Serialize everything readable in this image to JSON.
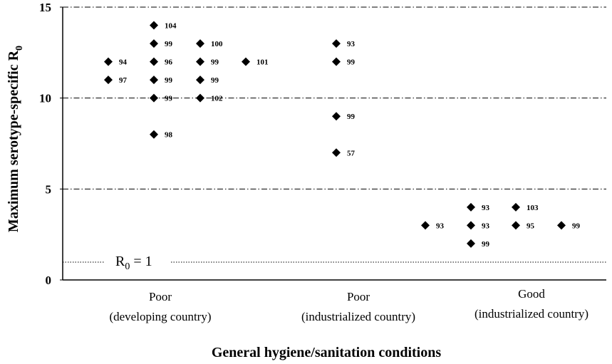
{
  "chart_data": {
    "type": "scatter",
    "xlabel": "General hygiene/sanitation conditions",
    "ylabel": "Maximum serotype-specific R",
    "ylabel_subscript": "0",
    "ylim": [
      0,
      15
    ],
    "yticks": [
      "0",
      "5",
      "10",
      "15"
    ],
    "grid": "horizontal dash-dot at 5, 10, 15",
    "categories": [
      {
        "line1": "Poor",
        "line2": "(developing country)"
      },
      {
        "line1": "Poor",
        "line2": "(industrialized country)"
      },
      {
        "line1": "Good",
        "line2": "(industrialized country)"
      }
    ],
    "reference_line": {
      "value": 1,
      "label_main": "R",
      "label_sub": "0",
      "label_rest": " = 1"
    },
    "points": [
      {
        "group": 0,
        "col": 0,
        "y": 12,
        "label": "94"
      },
      {
        "group": 0,
        "col": 0,
        "y": 11,
        "label": "97"
      },
      {
        "group": 0,
        "col": 1,
        "y": 14,
        "label": "104"
      },
      {
        "group": 0,
        "col": 1,
        "y": 13,
        "label": "99"
      },
      {
        "group": 0,
        "col": 1,
        "y": 12,
        "label": "96"
      },
      {
        "group": 0,
        "col": 1,
        "y": 11,
        "label": "99"
      },
      {
        "group": 0,
        "col": 1,
        "y": 10,
        "label": "99"
      },
      {
        "group": 0,
        "col": 1,
        "y": 8,
        "label": "98"
      },
      {
        "group": 0,
        "col": 2,
        "y": 13,
        "label": "100"
      },
      {
        "group": 0,
        "col": 2,
        "y": 12,
        "label": "99"
      },
      {
        "group": 0,
        "col": 2,
        "y": 11,
        "label": "99"
      },
      {
        "group": 0,
        "col": 2,
        "y": 10,
        "label": "102"
      },
      {
        "group": 0,
        "col": 3,
        "y": 12,
        "label": "101"
      },
      {
        "group": 1,
        "col": 0,
        "y": 13,
        "label": "93"
      },
      {
        "group": 1,
        "col": 0,
        "y": 12,
        "label": "99"
      },
      {
        "group": 1,
        "col": 0,
        "y": 9,
        "label": "99"
      },
      {
        "group": 1,
        "col": 0,
        "y": 7,
        "label": "57"
      },
      {
        "group": 2,
        "col": 0,
        "y": 3,
        "label": "93"
      },
      {
        "group": 2,
        "col": 1,
        "y": 4,
        "label": "93"
      },
      {
        "group": 2,
        "col": 1,
        "y": 3,
        "label": "93"
      },
      {
        "group": 2,
        "col": 1,
        "y": 2,
        "label": "99"
      },
      {
        "group": 2,
        "col": 2,
        "y": 4,
        "label": "103"
      },
      {
        "group": 2,
        "col": 2,
        "y": 3,
        "label": "95"
      },
      {
        "group": 2,
        "col": 3,
        "y": 3,
        "label": "99"
      }
    ]
  }
}
